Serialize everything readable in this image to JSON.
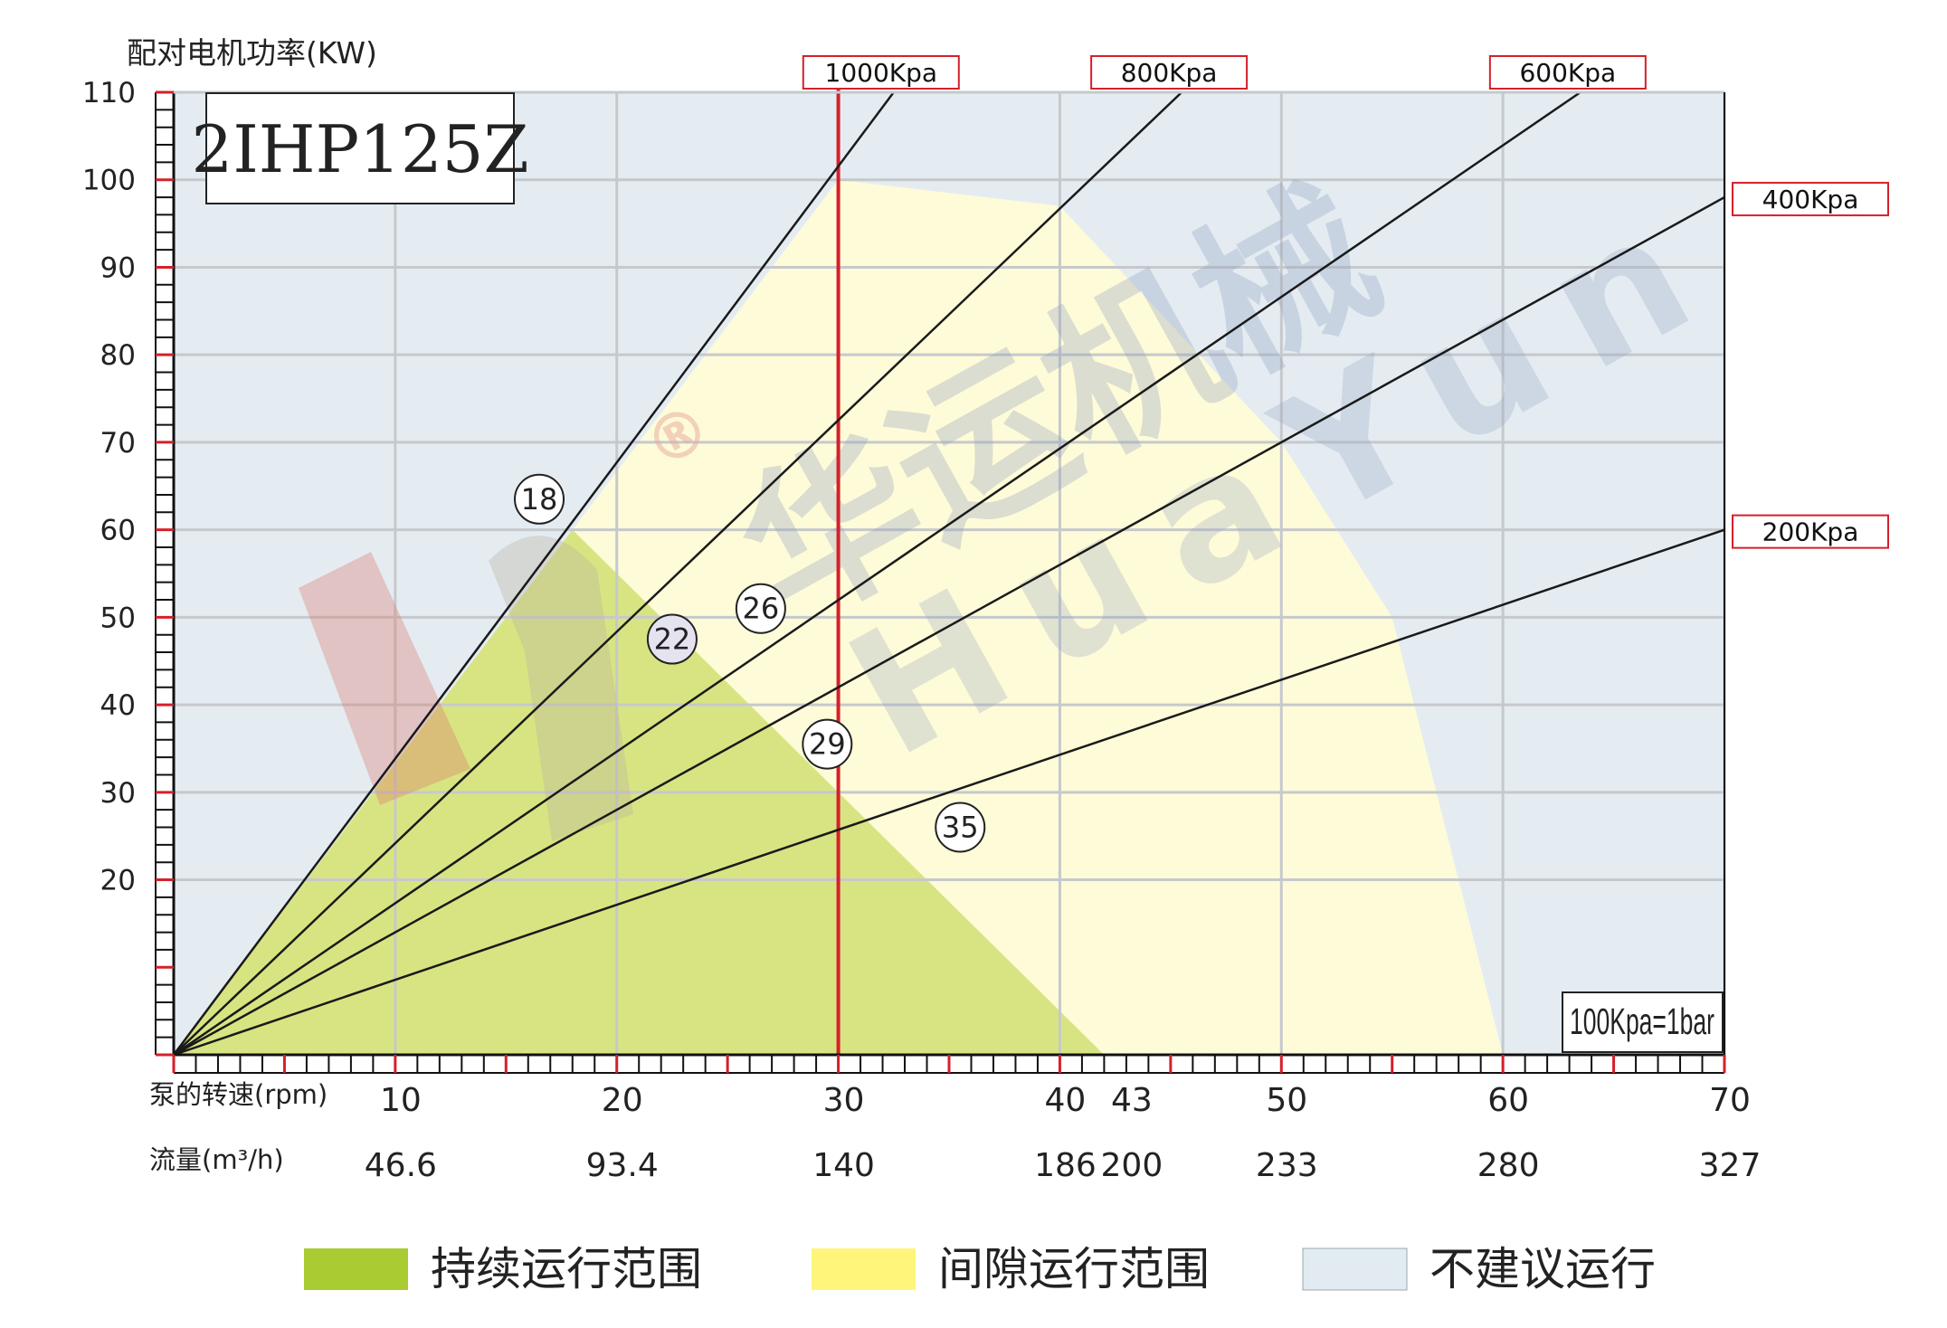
{
  "chart_data": {
    "type": "line",
    "title": "2IHP125Z",
    "ylabel": "配对电机功率(KW)",
    "xlabel": "泵的转速(rpm)",
    "flow_label": "流量(m³/h)",
    "xlim": [
      0,
      70
    ],
    "ylim": [
      0,
      110
    ],
    "y_ticks": [
      20,
      30,
      40,
      50,
      60,
      70,
      80,
      90,
      100,
      110
    ],
    "x_ticks": [
      {
        "x": 10,
        "label": "10",
        "flow": "46.6"
      },
      {
        "x": 20,
        "label": "20",
        "flow": "93.4"
      },
      {
        "x": 30,
        "label": "30",
        "flow": "140"
      },
      {
        "x": 40,
        "label": "40",
        "flow": "186"
      },
      {
        "x": 43,
        "label": "43",
        "flow": "200"
      },
      {
        "x": 50,
        "label": "50",
        "flow": "233"
      },
      {
        "x": 60,
        "label": "60",
        "flow": "280"
      },
      {
        "x": 70,
        "label": "70",
        "flow": "327"
      }
    ],
    "max_speed_marker": 30,
    "pressure_lines": [
      {
        "label": "1000Kpa",
        "end": [
          32.5,
          110
        ],
        "label_pos": "top"
      },
      {
        "label": "800Kpa",
        "end": [
          45.5,
          110
        ],
        "label_pos": "top"
      },
      {
        "label": "600Kpa",
        "end": [
          63.5,
          110
        ],
        "label_pos": "top"
      },
      {
        "label": "400Kpa",
        "end": [
          70,
          98
        ],
        "label_pos": "right"
      },
      {
        "label": "200Kpa",
        "end": [
          70,
          60
        ],
        "label_pos": "right"
      }
    ],
    "continuous_region": [
      [
        0,
        0
      ],
      [
        18,
        60
      ],
      [
        42,
        0
      ]
    ],
    "intermittent_region": [
      [
        0,
        0
      ],
      [
        30,
        100
      ],
      [
        40,
        97
      ],
      [
        50,
        70
      ],
      [
        55,
        50
      ],
      [
        60,
        0
      ]
    ],
    "circle_markers": [
      {
        "label": "18",
        "x": 16.5,
        "y": 63.5,
        "fill": "#ffffff"
      },
      {
        "label": "22",
        "x": 22.5,
        "y": 47.5,
        "fill": "#e6e3f1"
      },
      {
        "label": "26",
        "x": 26.5,
        "y": 51,
        "fill": "#ffffff"
      },
      {
        "label": "29",
        "x": 29.5,
        "y": 35.5,
        "fill": "#ffffff"
      },
      {
        "label": "35",
        "x": 35.5,
        "y": 26,
        "fill": "#ffffff"
      }
    ],
    "note": "100Kpa=1bar",
    "legend": [
      {
        "label": "持续运行范围",
        "color": "#a9cc33"
      },
      {
        "label": "间隙运行范围",
        "color": "#fff57a"
      },
      {
        "label": "不建议运行",
        "color": "#e2ebf1"
      }
    ],
    "colors": {
      "background": "#e4ecf2",
      "intermittent": "#fefbd8",
      "continuous": "#d8e482",
      "grid": "#c6c9cc",
      "marker_line": "#d4202a",
      "pressure_line": "#1a1a1a"
    }
  },
  "watermark": {
    "cn": "华运机械",
    "en": "HuaYun",
    "mark": "®"
  }
}
